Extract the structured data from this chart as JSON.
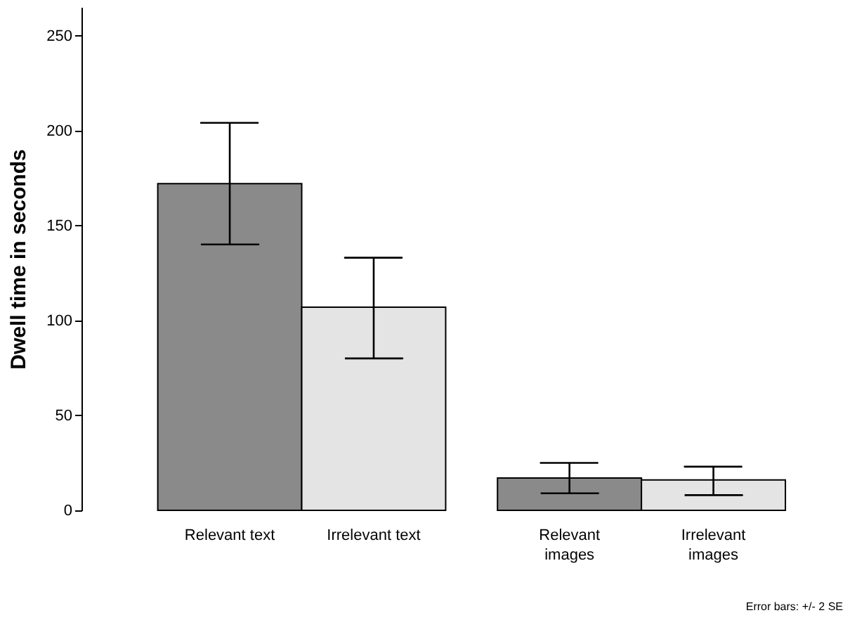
{
  "chart_data": {
    "type": "bar",
    "ylabel": "Dwell time in seconds",
    "categories": [
      "Relevant text",
      "Irrelevant text",
      "Relevant\nimages",
      "Irrelevant\nimages"
    ],
    "values": [
      172,
      107,
      17,
      16
    ],
    "colors": [
      "#8a8a8a",
      "#e4e4e4",
      "#8a8a8a",
      "#e4e4e4"
    ],
    "errors": [
      [
        140,
        204
      ],
      [
        80,
        133
      ],
      [
        9,
        25
      ],
      [
        8,
        23
      ]
    ],
    "ylim": [
      0,
      265
    ],
    "yticks": [
      0,
      50,
      100,
      150,
      200,
      250
    ],
    "grid": false,
    "annotations": [
      "Error bars: +/- 2 SE"
    ]
  }
}
